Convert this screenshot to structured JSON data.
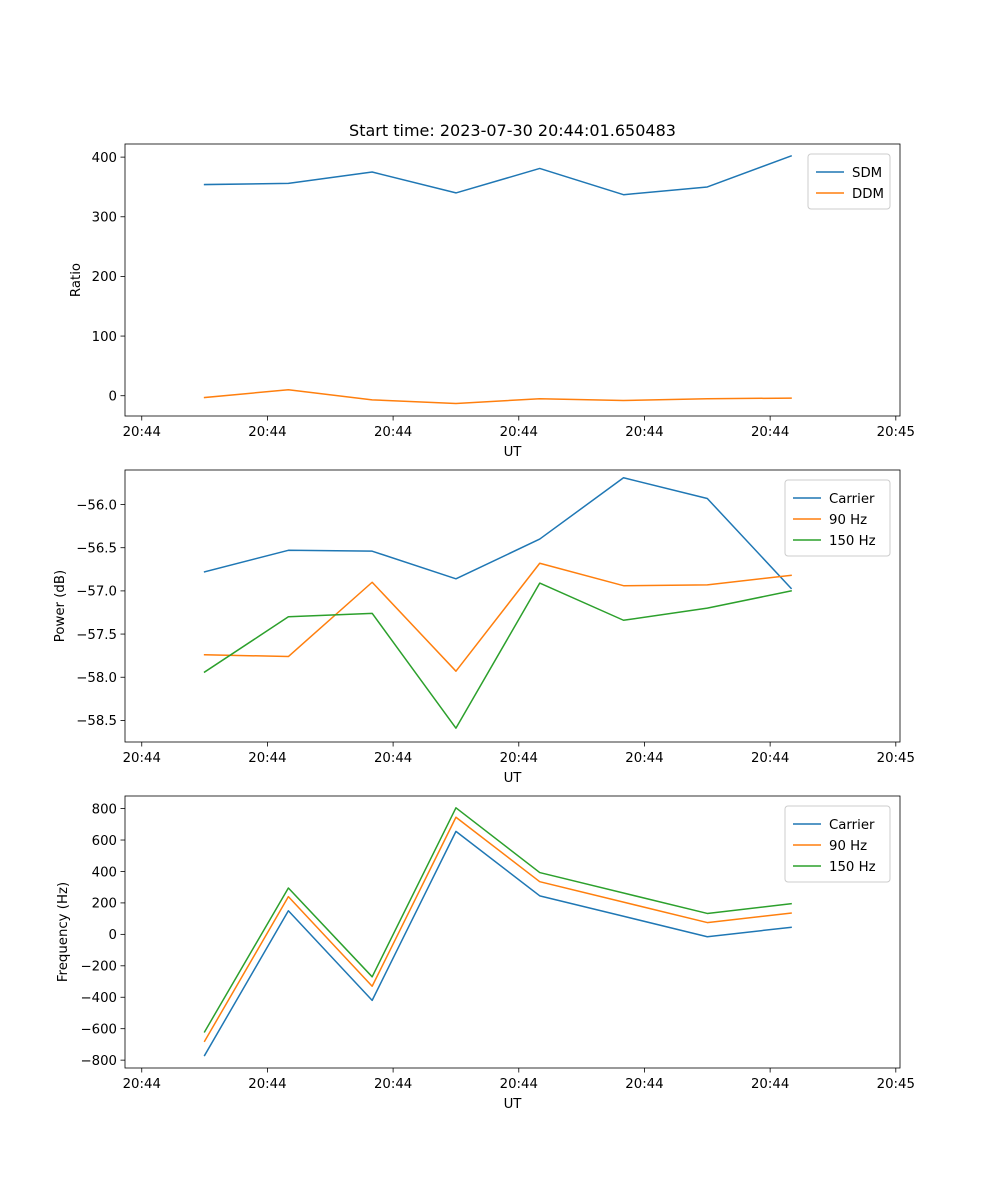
{
  "chart_data": [
    {
      "type": "line",
      "title": "Start time: 2023-07-30 20:44:01.650483",
      "xlabel": "UT",
      "ylabel": "Ratio",
      "x": [
        1,
        2,
        3,
        4,
        5,
        6,
        7,
        8
      ],
      "xlim": [
        0.05,
        9.3
      ],
      "xticks": [
        0.25,
        1.75,
        3.25,
        4.75,
        6.25,
        7.75,
        9.25
      ],
      "xtick_labels": [
        "20:44",
        "20:44",
        "20:44",
        "20:44",
        "20:44",
        "20:44",
        "20:45"
      ],
      "ylim": [
        -34,
        422
      ],
      "yticks": [
        0,
        100,
        200,
        300,
        400
      ],
      "ytick_labels": [
        "0",
        "100",
        "200",
        "300",
        "400"
      ],
      "legend_position": "upper-right",
      "series": [
        {
          "name": "SDM",
          "color": "#1f77b4",
          "values": [
            354,
            356,
            375,
            340,
            381,
            337,
            350,
            402
          ]
        },
        {
          "name": "DDM",
          "color": "#ff7f0e",
          "values": [
            -3,
            10,
            -7,
            -13,
            -5,
            -8,
            -5,
            -4
          ]
        }
      ]
    },
    {
      "type": "line",
      "title": "",
      "xlabel": "UT",
      "ylabel": "Power (dB)",
      "x": [
        1,
        2,
        3,
        4,
        5,
        6,
        7,
        8
      ],
      "xlim": [
        0.05,
        9.3
      ],
      "xticks": [
        0.25,
        1.75,
        3.25,
        4.75,
        6.25,
        7.75,
        9.25
      ],
      "xtick_labels": [
        "20:44",
        "20:44",
        "20:44",
        "20:44",
        "20:44",
        "20:44",
        "20:45"
      ],
      "ylim": [
        -58.75,
        -55.6
      ],
      "yticks": [
        -56.0,
        -56.5,
        -57.0,
        -57.5,
        -58.0,
        -58.5
      ],
      "ytick_labels": [
        "−56.0",
        "−56.5",
        "−57.0",
        "−57.5",
        "−58.0",
        "−58.5"
      ],
      "legend_position": "upper-right",
      "series": [
        {
          "name": "Carrier",
          "color": "#1f77b4",
          "values": [
            -56.78,
            -56.53,
            -56.54,
            -56.86,
            -56.4,
            -55.69,
            -55.93,
            -56.97
          ]
        },
        {
          "name": "90 Hz",
          "color": "#ff7f0e",
          "values": [
            -57.74,
            -57.76,
            -56.9,
            -57.93,
            -56.68,
            -56.94,
            -56.93,
            -56.82
          ]
        },
        {
          "name": "150 Hz",
          "color": "#2ca02c",
          "values": [
            -57.94,
            -57.3,
            -57.26,
            -58.59,
            -56.91,
            -57.34,
            -57.2,
            -57.0
          ]
        }
      ]
    },
    {
      "type": "line",
      "title": "",
      "xlabel": "UT",
      "ylabel": "Frequency (Hz)",
      "x": [
        1,
        2,
        3,
        4,
        5,
        6,
        7,
        8
      ],
      "xlim": [
        0.05,
        9.3
      ],
      "xticks": [
        0.25,
        1.75,
        3.25,
        4.75,
        6.25,
        7.75,
        9.25
      ],
      "xtick_labels": [
        "20:44",
        "20:44",
        "20:44",
        "20:44",
        "20:44",
        "20:44",
        "20:45"
      ],
      "ylim": [
        -850,
        880
      ],
      "yticks": [
        800,
        600,
        400,
        200,
        0,
        -200,
        -400,
        -600,
        -800
      ],
      "ytick_labels": [
        "800",
        "600",
        "400",
        "200",
        "0",
        "−200",
        "−400",
        "−600",
        "−800"
      ],
      "legend_position": "upper-right",
      "series": [
        {
          "name": "Carrier",
          "color": "#1f77b4",
          "values": [
            -770,
            150,
            -420,
            655,
            245,
            115,
            -15,
            45
          ]
        },
        {
          "name": "90 Hz",
          "color": "#ff7f0e",
          "values": [
            -680,
            240,
            -330,
            745,
            335,
            205,
            75,
            135
          ]
        },
        {
          "name": "150 Hz",
          "color": "#2ca02c",
          "values": [
            -620,
            295,
            -270,
            805,
            393,
            263,
            133,
            195
          ]
        }
      ]
    }
  ]
}
